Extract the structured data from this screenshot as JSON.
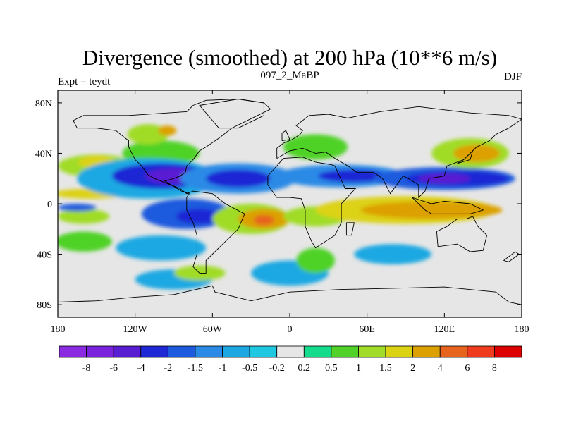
{
  "chart_data": {
    "type": "heatmap",
    "title": "Divergence (smoothed) at 200 hPa (10**6 m/s)",
    "left_label": "Expt = teydt",
    "center_label": "097_2_MaBP",
    "right_label": "DJF",
    "x_ticks": [
      {
        "lon": -180,
        "label": "180"
      },
      {
        "lon": -120,
        "label": "120W"
      },
      {
        "lon": -60,
        "label": "60W"
      },
      {
        "lon": 0,
        "label": "0"
      },
      {
        "lon": 60,
        "label": "60E"
      },
      {
        "lon": 120,
        "label": "120E"
      },
      {
        "lon": 180,
        "label": "180"
      }
    ],
    "y_ticks": [
      {
        "lat": 80,
        "label": "80N"
      },
      {
        "lat": 40,
        "label": "40N"
      },
      {
        "lat": 0,
        "label": "0"
      },
      {
        "lat": -40,
        "label": "40S"
      },
      {
        "lat": -80,
        "label": "80S"
      }
    ],
    "xlim": [
      -180,
      180
    ],
    "ylim": [
      -90,
      90
    ],
    "colorbar": {
      "colors": [
        "#8a2be2",
        "#7a22dc",
        "#5a1ed2",
        "#1e28d4",
        "#1e5ade",
        "#2a8ae6",
        "#1ea8e2",
        "#1ec8e0",
        "#e6e6e6",
        "#14dc8c",
        "#50d228",
        "#a0dc28",
        "#dcd214",
        "#dca000",
        "#e6641e",
        "#f03c1e",
        "#dc0000"
      ],
      "labels": [
        "-8",
        "-6",
        "-4",
        "-2",
        "-1.5",
        "-1",
        "-0.5",
        "-0.2",
        "0.2",
        "0.5",
        "1",
        "1.5",
        "2",
        "4",
        "6",
        "8"
      ]
    },
    "field": [
      {
        "lon": -150,
        "lat": 30,
        "level": 11,
        "rx": 30,
        "ry": 9
      },
      {
        "lon": -150,
        "lat": 33,
        "level": 12,
        "rx": 14,
        "ry": 5
      },
      {
        "lon": -100,
        "lat": 40,
        "level": 10,
        "rx": 30,
        "ry": 10
      },
      {
        "lon": -110,
        "lat": 55,
        "level": 11,
        "rx": 16,
        "ry": 8
      },
      {
        "lon": -95,
        "lat": 58,
        "level": 13,
        "rx": 7,
        "ry": 4
      },
      {
        "lon": -155,
        "lat": 8,
        "level": 12,
        "rx": 28,
        "ry": 4
      },
      {
        "lon": -160,
        "lat": -10,
        "level": 11,
        "rx": 20,
        "ry": 6
      },
      {
        "lon": -160,
        "lat": -30,
        "level": 10,
        "rx": 22,
        "ry": 8
      },
      {
        "lon": -110,
        "lat": 20,
        "level": 6,
        "rx": 55,
        "ry": 16
      },
      {
        "lon": -100,
        "lat": 22,
        "level": 3,
        "rx": 38,
        "ry": 10
      },
      {
        "lon": -90,
        "lat": 22,
        "level": 2,
        "rx": 22,
        "ry": 6
      },
      {
        "lon": -40,
        "lat": 20,
        "level": 5,
        "rx": 45,
        "ry": 12
      },
      {
        "lon": -40,
        "lat": 20,
        "level": 3,
        "rx": 25,
        "ry": 7
      },
      {
        "lon": 40,
        "lat": 22,
        "level": 5,
        "rx": 50,
        "ry": 9
      },
      {
        "lon": 50,
        "lat": 22,
        "level": 3,
        "rx": 28,
        "ry": 5
      },
      {
        "lon": 120,
        "lat": 20,
        "level": 4,
        "rx": 55,
        "ry": 9
      },
      {
        "lon": 130,
        "lat": 20,
        "level": 3,
        "rx": 40,
        "ry": 6
      },
      {
        "lon": 120,
        "lat": 20,
        "level": 2,
        "rx": 20,
        "ry": 4
      },
      {
        "lon": -165,
        "lat": -3,
        "level": 4,
        "rx": 15,
        "ry": 3
      },
      {
        "lon": -80,
        "lat": -8,
        "level": 4,
        "rx": 35,
        "ry": 12
      },
      {
        "lon": -70,
        "lat": -10,
        "level": 3,
        "rx": 18,
        "ry": 6
      },
      {
        "lon": -100,
        "lat": -35,
        "level": 6,
        "rx": 35,
        "ry": 10
      },
      {
        "lon": -90,
        "lat": -60,
        "level": 6,
        "rx": 30,
        "ry": 8
      },
      {
        "lon": 0,
        "lat": -55,
        "level": 6,
        "rx": 30,
        "ry": 10
      },
      {
        "lon": 80,
        "lat": -40,
        "level": 6,
        "rx": 30,
        "ry": 8
      },
      {
        "lon": -30,
        "lat": -12,
        "level": 11,
        "rx": 30,
        "ry": 12
      },
      {
        "lon": -20,
        "lat": -12,
        "level": 13,
        "rx": 20,
        "ry": 8
      },
      {
        "lon": -20,
        "lat": -13,
        "level": 14,
        "rx": 8,
        "ry": 4
      },
      {
        "lon": 20,
        "lat": -10,
        "level": 11,
        "rx": 25,
        "ry": 8
      },
      {
        "lon": 90,
        "lat": -5,
        "level": 12,
        "rx": 70,
        "ry": 11
      },
      {
        "lon": 110,
        "lat": -5,
        "level": 13,
        "rx": 55,
        "ry": 7
      },
      {
        "lon": 140,
        "lat": 40,
        "level": 11,
        "rx": 30,
        "ry": 12
      },
      {
        "lon": 145,
        "lat": 40,
        "level": 13,
        "rx": 18,
        "ry": 7
      },
      {
        "lon": 20,
        "lat": 45,
        "level": 10,
        "rx": 25,
        "ry": 10
      },
      {
        "lon": 20,
        "lat": -45,
        "level": 10,
        "rx": 15,
        "ry": 10
      },
      {
        "lon": -70,
        "lat": -55,
        "level": 11,
        "rx": 20,
        "ry": 6
      }
    ],
    "coastlines": [
      [
        [
          -168,
          66
        ],
        [
          -160,
          70
        ],
        [
          -140,
          70
        ],
        [
          -125,
          70
        ],
        [
          -95,
          72
        ],
        [
          -80,
          73
        ],
        [
          -75,
          78
        ],
        [
          -65,
          82
        ],
        [
          -40,
          83
        ],
        [
          -20,
          80
        ],
        [
          -15,
          75
        ],
        [
          -25,
          70
        ],
        [
          -45,
          60
        ],
        [
          -55,
          52
        ],
        [
          -65,
          45
        ],
        [
          -70,
          42
        ],
        [
          -75,
          35
        ],
        [
          -80,
          30
        ],
        [
          -81,
          25
        ],
        [
          -85,
          22
        ],
        [
          -90,
          20
        ],
        [
          -97,
          18
        ],
        [
          -92,
          15
        ],
        [
          -84,
          10
        ],
        [
          -78,
          8
        ],
        [
          -80,
          5
        ],
        [
          -80,
          -5
        ],
        [
          -75,
          -15
        ],
        [
          -72,
          -25
        ],
        [
          -72,
          -40
        ],
        [
          -75,
          -50
        ],
        [
          -70,
          -55
        ],
        [
          -65,
          -55
        ],
        [
          -65,
          -45
        ],
        [
          -58,
          -38
        ],
        [
          -48,
          -28
        ],
        [
          -40,
          -20
        ],
        [
          -35,
          -8
        ],
        [
          -50,
          0
        ],
        [
          -60,
          8
        ],
        [
          -75,
          10
        ],
        [
          -80,
          8
        ],
        [
          -85,
          12
        ],
        [
          -95,
          16
        ],
        [
          -105,
          20
        ],
        [
          -110,
          23
        ],
        [
          -115,
          30
        ],
        [
          -120,
          35
        ],
        [
          -125,
          45
        ],
        [
          -125,
          50
        ],
        [
          -135,
          58
        ],
        [
          -150,
          60
        ],
        [
          -165,
          60
        ],
        [
          -168,
          66
        ]
      ],
      [
        [
          -17,
          15
        ],
        [
          -17,
          22
        ],
        [
          -10,
          30
        ],
        [
          -5,
          36
        ],
        [
          10,
          37
        ],
        [
          20,
          33
        ],
        [
          32,
          31
        ],
        [
          35,
          30
        ],
        [
          43,
          12
        ],
        [
          51,
          12
        ],
        [
          40,
          0
        ],
        [
          40,
          -15
        ],
        [
          35,
          -25
        ],
        [
          20,
          -35
        ],
        [
          17,
          -30
        ],
        [
          12,
          -18
        ],
        [
          12,
          -5
        ],
        [
          9,
          4
        ],
        [
          0,
          5
        ],
        [
          -10,
          5
        ],
        [
          -17,
          15
        ]
      ],
      [
        [
          -10,
          36
        ],
        [
          -10,
          44
        ],
        [
          -5,
          48
        ],
        [
          2,
          51
        ],
        [
          8,
          55
        ],
        [
          10,
          58
        ],
        [
          5,
          62
        ],
        [
          15,
          70
        ],
        [
          30,
          71
        ],
        [
          45,
          68
        ],
        [
          70,
          73
        ],
        [
          100,
          77
        ],
        [
          140,
          72
        ],
        [
          170,
          70
        ],
        [
          180,
          67
        ],
        [
          170,
          60
        ],
        [
          160,
          55
        ],
        [
          155,
          50
        ],
        [
          145,
          45
        ],
        [
          135,
          35
        ],
        [
          122,
          30
        ],
        [
          120,
          22
        ],
        [
          108,
          20
        ],
        [
          105,
          10
        ],
        [
          100,
          5
        ],
        [
          100,
          15
        ],
        [
          92,
          20
        ],
        [
          88,
          22
        ],
        [
          78,
          8
        ],
        [
          72,
          20
        ],
        [
          65,
          25
        ],
        [
          57,
          25
        ],
        [
          52,
          25
        ],
        [
          45,
          30
        ],
        [
          35,
          36
        ],
        [
          28,
          41
        ],
        [
          20,
          40
        ],
        [
          10,
          44
        ],
        [
          0,
          42
        ],
        [
          -10,
          36
        ]
      ],
      [
        [
          114,
          -22
        ],
        [
          122,
          -18
        ],
        [
          130,
          -12
        ],
        [
          137,
          -12
        ],
        [
          142,
          -10
        ],
        [
          146,
          -18
        ],
        [
          153,
          -25
        ],
        [
          150,
          -37
        ],
        [
          140,
          -38
        ],
        [
          130,
          -32
        ],
        [
          115,
          -34
        ],
        [
          114,
          -22
        ]
      ],
      [
        [
          -180,
          -78
        ],
        [
          -150,
          -77
        ],
        [
          -120,
          -74
        ],
        [
          -90,
          -72
        ],
        [
          -60,
          -65
        ],
        [
          -58,
          -70
        ],
        [
          -30,
          -77
        ],
        [
          0,
          -70
        ],
        [
          40,
          -68
        ],
        [
          80,
          -67
        ],
        [
          120,
          -66
        ],
        [
          160,
          -70
        ],
        [
          170,
          -78
        ],
        [
          180,
          -80
        ]
      ],
      [
        [
          -55,
          60
        ],
        [
          -40,
          60
        ],
        [
          -20,
          70
        ],
        [
          -20,
          80
        ],
        [
          -40,
          83
        ],
        [
          -70,
          78
        ],
        [
          -55,
          60
        ]
      ],
      [
        [
          44,
          -15
        ],
        [
          50,
          -15
        ],
        [
          48,
          -25
        ],
        [
          44,
          -25
        ],
        [
          44,
          -15
        ]
      ],
      [
        [
          95,
          5
        ],
        [
          105,
          -5
        ],
        [
          110,
          -8
        ],
        [
          120,
          -8
        ],
        [
          140,
          -8
        ],
        [
          150,
          -5
        ],
        [
          140,
          0
        ],
        [
          120,
          2
        ],
        [
          110,
          0
        ],
        [
          95,
          5
        ]
      ],
      [
        [
          130,
          32
        ],
        [
          140,
          35
        ],
        [
          142,
          42
        ],
        [
          135,
          35
        ],
        [
          130,
          32
        ]
      ],
      [
        [
          166,
          -45
        ],
        [
          175,
          -38
        ],
        [
          178,
          -40
        ],
        [
          170,
          -46
        ],
        [
          166,
          -45
        ]
      ],
      [
        [
          -6,
          50
        ],
        [
          0,
          51
        ],
        [
          -3,
          58
        ],
        [
          -6,
          56
        ],
        [
          -6,
          50
        ]
      ]
    ]
  }
}
